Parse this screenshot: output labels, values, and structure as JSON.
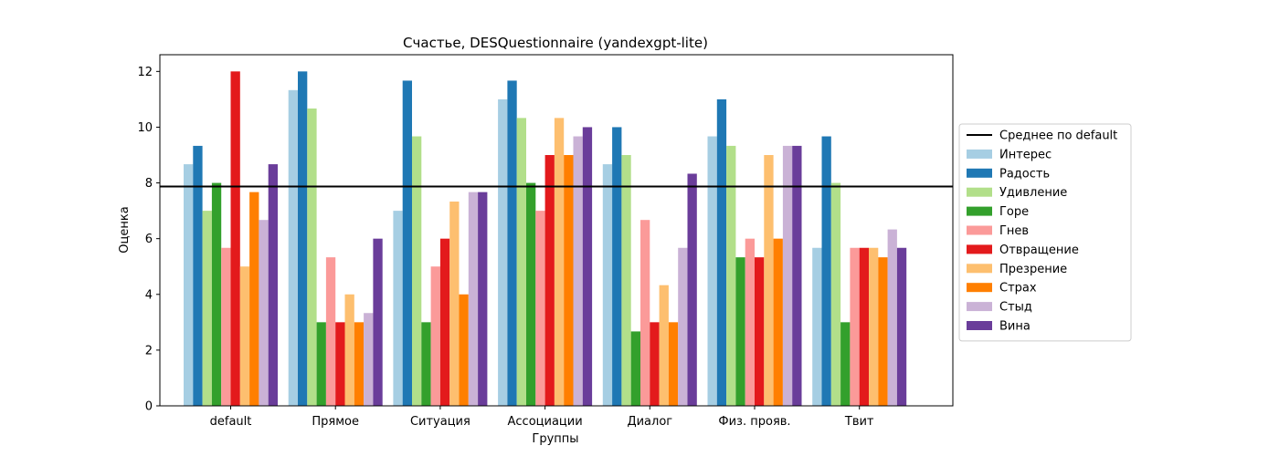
{
  "chart_data": {
    "type": "bar",
    "title": "Счастье, DESQuestionnaire (yandexgpt-lite)",
    "xlabel": "Группы",
    "ylabel": "Оценка",
    "ylim": [
      0,
      12.6
    ],
    "yticks": [
      0,
      2,
      4,
      6,
      8,
      10,
      12
    ],
    "grid": false,
    "legend_position": "right-outside",
    "categories": [
      "default",
      "Прямое",
      "Ситуация",
      "Ассоциации",
      "Диалог",
      "Физ. прояв.",
      "Твит"
    ],
    "reference_line": {
      "name": "Среднее по default",
      "value": 7.87,
      "color": "#000000"
    },
    "series": [
      {
        "name": "Интерес",
        "color": "#a6cee3",
        "values": [
          8.67,
          11.33,
          7.0,
          11.0,
          8.67,
          9.67,
          5.67
        ]
      },
      {
        "name": "Радость",
        "color": "#1f78b4",
        "values": [
          9.33,
          12.0,
          11.67,
          11.67,
          10.0,
          11.0,
          9.67
        ]
      },
      {
        "name": "Удивление",
        "color": "#b2df8a",
        "values": [
          7.0,
          10.67,
          9.67,
          10.33,
          9.0,
          9.33,
          8.0
        ]
      },
      {
        "name": "Горе",
        "color": "#33a02c",
        "values": [
          8.0,
          3.0,
          3.0,
          8.0,
          2.67,
          5.33,
          3.0
        ]
      },
      {
        "name": "Гнев",
        "color": "#fb9a99",
        "values": [
          5.67,
          5.33,
          5.0,
          7.0,
          6.67,
          6.0,
          5.67
        ]
      },
      {
        "name": "Отвращение",
        "color": "#e31a1c",
        "values": [
          12.0,
          3.0,
          6.0,
          9.0,
          3.0,
          5.33,
          5.67
        ]
      },
      {
        "name": "Презрение",
        "color": "#fdbf6f",
        "values": [
          5.0,
          4.0,
          7.33,
          10.33,
          4.33,
          9.0,
          5.67
        ]
      },
      {
        "name": "Страх",
        "color": "#ff7f00",
        "values": [
          7.67,
          3.0,
          4.0,
          9.0,
          3.0,
          6.0,
          5.33
        ]
      },
      {
        "name": "Стыд",
        "color": "#cab2d6",
        "values": [
          6.67,
          3.33,
          7.67,
          9.67,
          5.67,
          9.33,
          6.33
        ]
      },
      {
        "name": "Вина",
        "color": "#6a3d9a",
        "values": [
          8.67,
          6.0,
          7.67,
          10.0,
          8.33,
          9.33,
          5.67
        ]
      }
    ]
  }
}
